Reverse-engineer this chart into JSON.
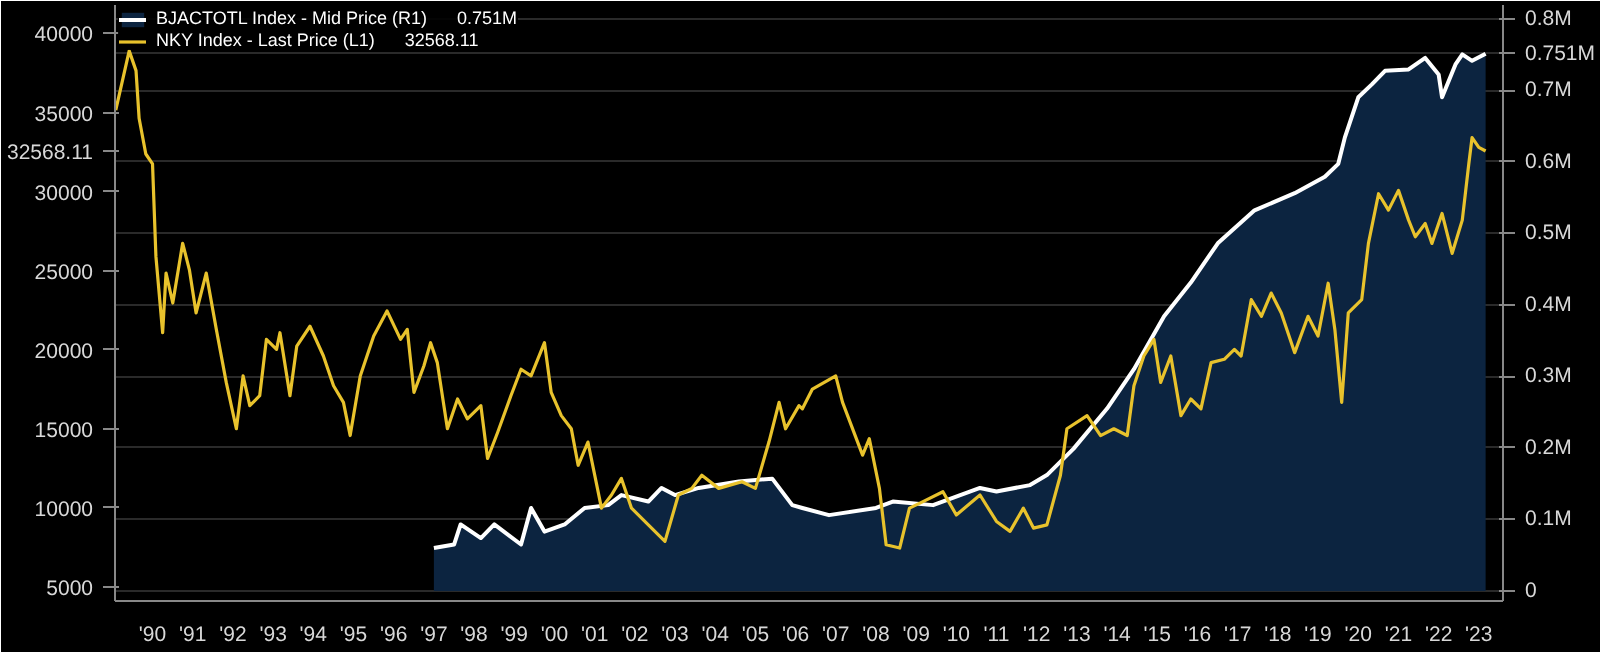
{
  "chart_data": {
    "type": "line",
    "xlim": [
      "1989-07-25",
      "2024-02-06"
    ],
    "xticks": [
      {
        "value": "1990-07-01",
        "label": "'90"
      },
      {
        "value": "1991-07-01",
        "label": "'91"
      },
      {
        "value": "1992-07-01",
        "label": "'92"
      },
      {
        "value": "1993-07-01",
        "label": "'93"
      },
      {
        "value": "1994-07-01",
        "label": "'94"
      },
      {
        "value": "1995-07-01",
        "label": "'95"
      },
      {
        "value": "1996-07-01",
        "label": "'96"
      },
      {
        "value": "1997-07-01",
        "label": "'97"
      },
      {
        "value": "1998-07-01",
        "label": "'98"
      },
      {
        "value": "1999-07-01",
        "label": "'99"
      },
      {
        "value": "2000-07-01",
        "label": "'00"
      },
      {
        "value": "2001-07-01",
        "label": "'01"
      },
      {
        "value": "2002-07-01",
        "label": "'02"
      },
      {
        "value": "2003-07-01",
        "label": "'03"
      },
      {
        "value": "2004-07-01",
        "label": "'04"
      },
      {
        "value": "2005-07-01",
        "label": "'05"
      },
      {
        "value": "2006-07-01",
        "label": "'06"
      },
      {
        "value": "2007-07-01",
        "label": "'07"
      },
      {
        "value": "2008-07-01",
        "label": "'08"
      },
      {
        "value": "2009-07-01",
        "label": "'09"
      },
      {
        "value": "2010-07-01",
        "label": "'10"
      },
      {
        "value": "2011-07-01",
        "label": "'11"
      },
      {
        "value": "2012-07-01",
        "label": "'12"
      },
      {
        "value": "2013-07-01",
        "label": "'13"
      },
      {
        "value": "2014-07-01",
        "label": "'14"
      },
      {
        "value": "2015-07-01",
        "label": "'15"
      },
      {
        "value": "2016-07-01",
        "label": "'16"
      },
      {
        "value": "2017-07-01",
        "label": "'17"
      },
      {
        "value": "2018-07-01",
        "label": "'18"
      },
      {
        "value": "2019-07-01",
        "label": "'19"
      },
      {
        "value": "2020-07-01",
        "label": "'20"
      },
      {
        "value": "2021-07-01",
        "label": "'21"
      },
      {
        "value": "2022-07-01",
        "label": "'22"
      },
      {
        "value": "2023-07-01",
        "label": "'23"
      }
    ],
    "ylim": [
      4120,
      41800
    ],
    "yticks": [
      5000,
      10000,
      15000,
      20000,
      25000,
      30000,
      {
        "value": 32568.11,
        "label": "32568.11"
      },
      35000,
      40000
    ],
    "y2lim": [
      -0.014,
      0.819
    ],
    "y2ticks": [
      {
        "value": 0,
        "label": "0"
      },
      {
        "value": 0.1,
        "label": "0.1M"
      },
      {
        "value": 0.2,
        "label": "0.2M"
      },
      {
        "value": 0.3,
        "label": "0.3M"
      },
      {
        "value": 0.4,
        "label": "0.4M"
      },
      {
        "value": 0.5,
        "label": "0.5M"
      },
      {
        "value": 0.6,
        "label": "0.6M"
      },
      {
        "value": 0.7,
        "label": "0.7M"
      },
      {
        "value": 0.751,
        "label": "0.751M"
      },
      {
        "value": 0.8,
        "label": "0.8M"
      }
    ],
    "grid": "y",
    "legend": "top left",
    "series": [
      {
        "name": "BJACTOTL Index - Mid Price (R1)      0.751M",
        "type": "area",
        "axis": "y2",
        "color": "#0c2440",
        "x": [
          "1997-07",
          "1998-01",
          "1998-03",
          "1998-09",
          "1999-01",
          "1999-09",
          "1999-12",
          "2000-04",
          "2000-10",
          "2001-04",
          "2001-11",
          "2002-03",
          "2002-11",
          "2003-03",
          "2003-07",
          "2004-02",
          "2005-02",
          "2005-12",
          "2006-06",
          "2006-09",
          "2007-05",
          "2008-07",
          "2008-12",
          "2009-12",
          "2011-02",
          "2011-07",
          "2012-05",
          "2012-10",
          "2013-06",
          "2014-04",
          "2014-12",
          "2015-09",
          "2016-05",
          "2017-01",
          "2017-12",
          "2018-12",
          "2019-09",
          "2020-01",
          "2020-03",
          "2020-07",
          "2020-11",
          "2021-03",
          "2021-10",
          "2022-03",
          "2022-07",
          "2022-08",
          "2022-12",
          "2023-02",
          "2023-05",
          "2023-09"
        ],
        "values": [
          0.06,
          0.065,
          0.093,
          0.074,
          0.093,
          0.065,
          0.116,
          0.083,
          0.093,
          0.116,
          0.12,
          0.134,
          0.125,
          0.144,
          0.134,
          0.144,
          0.153,
          0.157,
          0.12,
          0.116,
          0.106,
          0.116,
          0.125,
          0.12,
          0.144,
          0.139,
          0.148,
          0.162,
          0.199,
          0.255,
          0.31,
          0.384,
          0.431,
          0.486,
          0.532,
          0.556,
          0.579,
          0.597,
          0.634,
          0.69,
          0.708,
          0.727,
          0.729,
          0.745,
          0.722,
          0.69,
          0.736,
          0.75,
          0.741,
          0.751
        ]
      },
      {
        "name": "NKY Index - Last Price (L1)      32568.11",
        "color": "#e8c22c",
        "x": [
          "1989-08",
          "1989-12",
          "1990-02",
          "1990-03",
          "1990-05",
          "1990-07",
          "1990-08",
          "1990-10",
          "1990-11",
          "1991-01",
          "1991-04",
          "1991-06",
          "1991-08",
          "1991-11",
          "1992-02",
          "1992-05",
          "1992-08",
          "1992-10",
          "1992-12",
          "1993-03",
          "1993-05",
          "1993-08",
          "1993-09",
          "1993-12",
          "1994-02",
          "1994-06",
          "1994-10",
          "1995-01",
          "1995-04",
          "1995-06",
          "1995-09",
          "1996-01",
          "1996-05",
          "1996-09",
          "1996-11",
          "1997-01",
          "1997-04",
          "1997-06",
          "1997-08",
          "1997-11",
          "1998-02",
          "1998-05",
          "1998-09",
          "1998-11",
          "1999-02",
          "1999-06",
          "1999-09",
          "1999-12",
          "2000-04",
          "2000-06",
          "2000-09",
          "2000-12",
          "2001-02",
          "2001-05",
          "2001-09",
          "2001-12",
          "2002-03",
          "2002-06",
          "2002-11",
          "2003-04",
          "2003-08",
          "2003-12",
          "2004-03",
          "2004-08",
          "2005-03",
          "2005-07",
          "2005-11",
          "2006-02",
          "2006-04",
          "2006-08",
          "2006-09",
          "2006-12",
          "2007-07",
          "2007-09",
          "2008-03",
          "2008-05",
          "2008-08",
          "2008-10",
          "2009-02",
          "2009-05",
          "2009-09",
          "2010-03",
          "2010-07",
          "2011-02",
          "2011-07",
          "2011-11",
          "2012-03",
          "2012-06",
          "2012-10",
          "2013-02",
          "2013-04",
          "2013-10",
          "2014-02",
          "2014-06",
          "2014-10",
          "2014-12",
          "2015-03",
          "2015-06",
          "2015-08",
          "2015-11",
          "2016-02",
          "2016-05",
          "2016-08",
          "2016-11",
          "2017-03",
          "2017-06",
          "2017-08",
          "2017-11",
          "2018-02",
          "2018-05",
          "2018-08",
          "2018-12",
          "2019-04",
          "2019-07",
          "2019-10",
          "2019-12",
          "2020-02",
          "2020-04",
          "2020-08",
          "2020-10",
          "2021-01",
          "2021-04",
          "2021-07",
          "2021-10",
          "2021-12",
          "2022-03",
          "2022-05",
          "2022-08",
          "2022-11",
          "2023-02",
          "2023-04",
          "2023-05",
          "2023-07",
          "2023-09"
        ],
        "values": [
          35150,
          38900,
          37650,
          34640,
          32380,
          31750,
          25890,
          21080,
          24850,
          22960,
          26730,
          25060,
          22330,
          24850,
          21290,
          17940,
          15010,
          18350,
          16470,
          17100,
          20660,
          20030,
          21080,
          17100,
          20240,
          21490,
          19610,
          17730,
          16680,
          14580,
          18350,
          20870,
          22460,
          20660,
          21290,
          17310,
          18980,
          20450,
          19190,
          15010,
          16890,
          15640,
          16470,
          13130,
          14790,
          17100,
          18770,
          18350,
          20450,
          17310,
          15840,
          15010,
          12700,
          14170,
          9990,
          10820,
          11870,
          9990,
          8930,
          7890,
          10820,
          11240,
          12070,
          11240,
          11660,
          11240,
          14170,
          16680,
          15010,
          16470,
          16270,
          17520,
          18350,
          16680,
          13340,
          14380,
          11240,
          7680,
          7470,
          9990,
          10400,
          11030,
          9560,
          10820,
          9150,
          8520,
          9990,
          8730,
          8930,
          12070,
          15010,
          15840,
          14580,
          15010,
          14580,
          17730,
          19610,
          20660,
          17940,
          19610,
          15840,
          16890,
          16270,
          19190,
          19400,
          20030,
          19610,
          23170,
          22120,
          23590,
          22330,
          19820,
          22120,
          20870,
          24210,
          21290,
          16680,
          22330,
          23170,
          26730,
          29870,
          28830,
          30080,
          28200,
          27150,
          27990,
          26730,
          28620,
          26100,
          28200,
          31750,
          33420,
          32800,
          32568.11
        ]
      }
    ]
  }
}
